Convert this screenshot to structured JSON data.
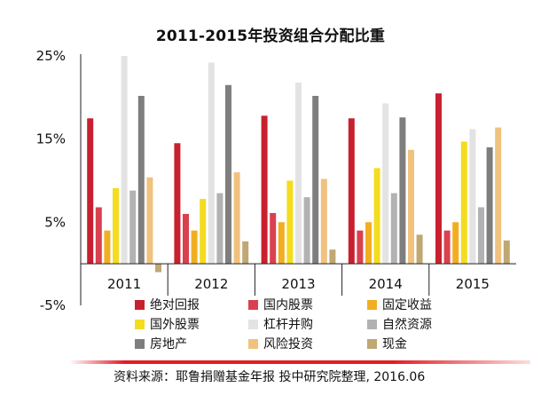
{
  "chart_data": {
    "type": "bar",
    "title": "2011-2015年投资组合分配比重",
    "categories": [
      "2011",
      "2012",
      "2013",
      "2014",
      "2015"
    ],
    "ylim": [
      -5,
      25
    ],
    "yticks": [
      "25%",
      "15%",
      "5%",
      "-5%"
    ],
    "ytick_values": [
      25,
      15,
      5,
      -5
    ],
    "grid": false,
    "legend_position": "bottom",
    "series": [
      {
        "name": "绝对回报",
        "color": "#c8202f",
        "values": [
          17.5,
          14.5,
          17.8,
          17.5,
          20.5
        ]
      },
      {
        "name": "国内股票",
        "color": "#d9414e",
        "values": [
          6.8,
          6.0,
          6.1,
          4.0,
          4.0
        ]
      },
      {
        "name": "固定收益",
        "color": "#f2ae21",
        "values": [
          4.0,
          4.0,
          5.0,
          5.0,
          5.0
        ]
      },
      {
        "name": "国外股票",
        "color": "#f4dc1f",
        "values": [
          9.1,
          7.8,
          10.0,
          11.5,
          14.7
        ]
      },
      {
        "name": "杠杆并购",
        "color": "#e3e3e3",
        "values": [
          25.0,
          24.2,
          21.8,
          19.3,
          16.2
        ]
      },
      {
        "name": "自然资源",
        "color": "#b2b2b2",
        "values": [
          8.8,
          8.5,
          8.0,
          8.5,
          6.8
        ]
      },
      {
        "name": "房地产",
        "color": "#7e7e7e",
        "values": [
          20.2,
          21.5,
          20.2,
          17.6,
          14.0
        ]
      },
      {
        "name": "风险投资",
        "color": "#f0c27e",
        "values": [
          10.4,
          11.0,
          10.2,
          13.7,
          16.4
        ]
      },
      {
        "name": "现金",
        "color": "#c1a772",
        "values": [
          -1.0,
          2.7,
          1.7,
          3.5,
          2.8
        ]
      }
    ]
  },
  "footer": {
    "source_text": "资料来源：耶鲁捐赠基金年报    投中研究院整理, 2016.06",
    "line_color": "#e31b23"
  }
}
